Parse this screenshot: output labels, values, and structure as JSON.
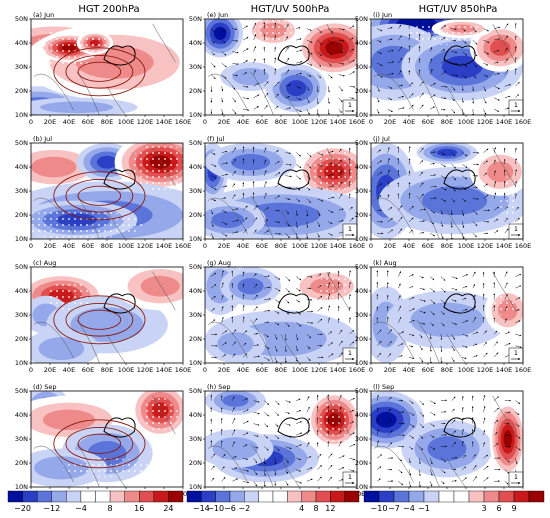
{
  "columns": [
    {
      "title": "HGT 200hPa"
    },
    {
      "title": "HGT/UV 500hPa"
    },
    {
      "title": "HGT/UV 850hPa"
    }
  ],
  "row_months": [
    "Jun",
    "Jul",
    "Aug",
    "Sep"
  ],
  "panel_letters": [
    [
      "(a)",
      "(b)",
      "(c)",
      "(d)"
    ],
    [
      "(e)",
      "(f)",
      "(g)",
      "(h)"
    ],
    [
      "(i)",
      "(j)",
      "(k)",
      "(l)"
    ]
  ],
  "lat_labels": [
    "50N",
    "40N",
    "30N",
    "20N",
    "10N"
  ],
  "lon_labels": [
    "0",
    "20E",
    "40E",
    "60E",
    "80E",
    "100E",
    "120E",
    "140E",
    "160E"
  ],
  "vector_reference": "1",
  "colorbars": [
    {
      "ticks": [
        "−20",
        "−12",
        "−4",
        "8",
        "16",
        "24"
      ],
      "colors": [
        "#00109e",
        "#2a3fc6",
        "#5a74da",
        "#94a8ea",
        "#c9d3f6",
        "#ffffff",
        "#ffffff",
        "#f9c2c2",
        "#ee8a8a",
        "#e05050",
        "#c81a1a",
        "#9a0000"
      ]
    },
    {
      "ticks": [
        "−14",
        "−10",
        "−6",
        "−2",
        "4",
        "8",
        "12"
      ],
      "colors": [
        "#00109e",
        "#2a3fc6",
        "#5a74da",
        "#94a8ea",
        "#c9d3f6",
        "#ffffff",
        "#ffffff",
        "#f9c2c2",
        "#ee8a8a",
        "#e05050",
        "#c81a1a",
        "#9a0000"
      ]
    },
    {
      "ticks": [
        "−10",
        "−7",
        "−4",
        "−1",
        "3",
        "6",
        "9"
      ],
      "colors": [
        "#00109e",
        "#2a3fc6",
        "#5a74da",
        "#94a8ea",
        "#c9d3f6",
        "#ffffff",
        "#ffffff",
        "#f9c2c2",
        "#ee8a8a",
        "#e05050",
        "#c81a1a",
        "#9a0000"
      ]
    }
  ]
}
